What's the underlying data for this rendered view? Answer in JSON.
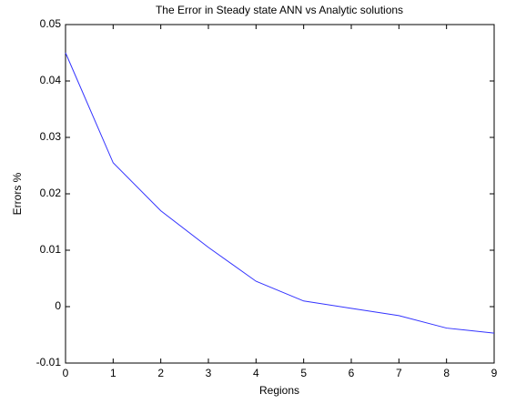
{
  "chart_data": {
    "type": "line",
    "title": "The Error in Steady state ANN vs Analytic solutions",
    "x_label": "Regions",
    "y_label": "Errors %",
    "x": [
      0,
      1,
      2,
      3,
      4,
      5,
      6,
      7,
      8,
      9
    ],
    "series": [
      {
        "color": "#3333ff",
        "values": [
          0.045,
          0.0255,
          0.017,
          0.0105,
          0.0045,
          0.001,
          -0.0003,
          -0.0016,
          -0.0038,
          -0.0047
        ]
      }
    ],
    "xlim": [
      0,
      9
    ],
    "xticks": [
      0,
      1,
      2,
      3,
      4,
      5,
      6,
      7,
      8,
      9
    ],
    "ylim": [
      -0.01,
      0.05
    ],
    "yticks": [
      -0.01,
      0,
      0.01,
      0.02,
      0.03,
      0.04,
      0.05
    ]
  }
}
